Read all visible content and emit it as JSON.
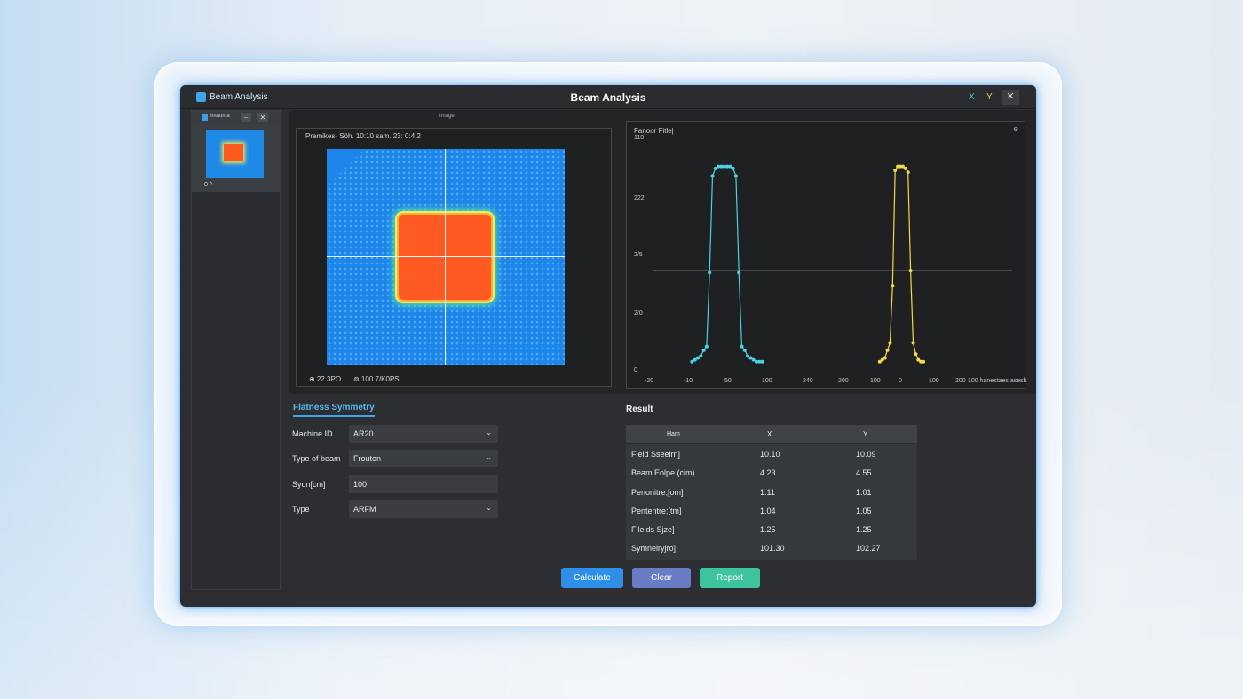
{
  "app": {
    "brand": "Beam Analysis",
    "window_title": "Beam Analysis",
    "tb_x": "X",
    "tb_y": "Y",
    "tb_close": "✕"
  },
  "sidebar": {
    "item_name": "Imaoma",
    "min_label": "–",
    "close_label": "✕",
    "item_label": "0 ^"
  },
  "image_panel": {
    "title": "Image",
    "header": "Pramikes- Söh. 10:10 sam. 23: 0:4 2",
    "footer_left": "⊕ 22.3PO",
    "footer_right": "⊚ 100 7/K0PS"
  },
  "plot_panel": {
    "title": "Fanoor Fitle|",
    "y_top": "110",
    "gear": "⚙"
  },
  "chart_data": {
    "type": "line",
    "title": "Fanoor Fitle|",
    "ytick_labels": [
      "110",
      "222",
      "2/5",
      "2/0",
      "0"
    ],
    "xtick_labels": [
      "-20",
      "-10",
      "50",
      "100",
      "240",
      "200",
      "100",
      "0",
      "100",
      "200",
      "100 hanestaes asesbers"
    ],
    "ylim": [
      0,
      110
    ],
    "reference_line": 50,
    "series": [
      {
        "color": "#4fd0e4",
        "x": [
          -12,
          -11,
          -10,
          -9,
          -8,
          -7,
          -6,
          -5,
          -4,
          -3,
          -2,
          -1,
          0,
          1,
          2,
          3,
          4,
          5,
          6,
          7,
          8,
          9,
          10,
          11,
          12
        ],
        "y": [
          2,
          3,
          4,
          5,
          8,
          10,
          49,
          100,
          104,
          105,
          105,
          105,
          105,
          105,
          104,
          100,
          49,
          10,
          8,
          5,
          4,
          3,
          2,
          2,
          2
        ]
      },
      {
        "color": "#f2d84a",
        "x": [
          -8,
          -7,
          -6,
          -5,
          -4,
          -3,
          -2,
          -1,
          0,
          1,
          2,
          3,
          4,
          5,
          6,
          7,
          8,
          9
        ],
        "y": [
          2,
          3,
          4,
          8,
          12,
          42,
          103,
          105,
          105,
          105,
          104,
          102,
          50,
          12,
          6,
          3,
          2,
          2
        ]
      }
    ]
  },
  "form": {
    "tab": "Flatness Symmetry",
    "rows": [
      {
        "label": "Machine ID",
        "value": "AR20",
        "dropdown": true
      },
      {
        "label": "Type of beam",
        "value": "Frouton",
        "dropdown": true
      },
      {
        "label": "Syon[cm]",
        "value": "100",
        "dropdown": false
      },
      {
        "label": "Type",
        "value": "ARFM",
        "dropdown": true
      }
    ]
  },
  "result": {
    "title": "Result",
    "headers": {
      "item": "Ham",
      "x": "X",
      "y": "Y"
    },
    "rows": [
      {
        "name": "Field Sseeirn]",
        "x": "10.10",
        "y": "10.09"
      },
      {
        "name": "Beam Eolpe (cim)",
        "x": "4.23",
        "y": "4.55"
      },
      {
        "name": "Penonitre;[om]",
        "x": "1.11",
        "y": "1.01"
      },
      {
        "name": "Pententre;[tm]",
        "x": "1.04",
        "y": "1.05"
      },
      {
        "name": "Filelds Sjze]",
        "x": "1.25",
        "y": "1.25"
      },
      {
        "name": "Symnelryjro]",
        "x": "101.30",
        "y": "102.27"
      }
    ]
  },
  "buttons": {
    "calculate": "Calculate",
    "clear": "Clear",
    "report": "Report"
  }
}
